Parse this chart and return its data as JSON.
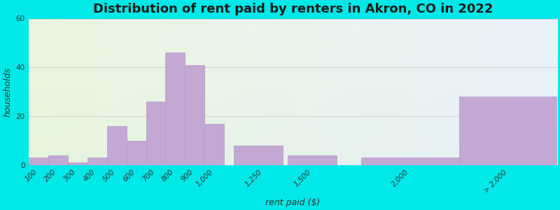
{
  "title": "Distribution of rent paid by renters in Akron, CO in 2022",
  "xlabel": "rent paid ($)",
  "ylabel": "households",
  "bar_color": "#c4a8d4",
  "bar_edge_color": "#b898c8",
  "background_outer": "#00e8e8",
  "ylim": [
    0,
    60
  ],
  "yticks": [
    0,
    20,
    40,
    60
  ],
  "categories": [
    "100",
    "200",
    "300",
    "400",
    "500",
    "600",
    "700",
    "800",
    "900",
    "1,000",
    "1,250",
    "1,500",
    "2,000",
    "> 2,000"
  ],
  "values": [
    3,
    4,
    1,
    3,
    16,
    10,
    26,
    46,
    41,
    17,
    8,
    4,
    3,
    28
  ],
  "bar_left_edges": [
    50,
    150,
    250,
    350,
    450,
    550,
    650,
    750,
    850,
    950,
    1100,
    1375,
    1750,
    2250
  ],
  "bar_widths": [
    100,
    100,
    100,
    100,
    100,
    100,
    100,
    100,
    100,
    100,
    250,
    250,
    500,
    500
  ],
  "xtick_positions": [
    100,
    200,
    300,
    400,
    500,
    600,
    700,
    800,
    900,
    1000,
    1250,
    1500,
    2000,
    2500
  ],
  "xlim": [
    50,
    2750
  ],
  "title_fontsize": 13,
  "axis_label_fontsize": 9,
  "tick_fontsize": 7.5
}
